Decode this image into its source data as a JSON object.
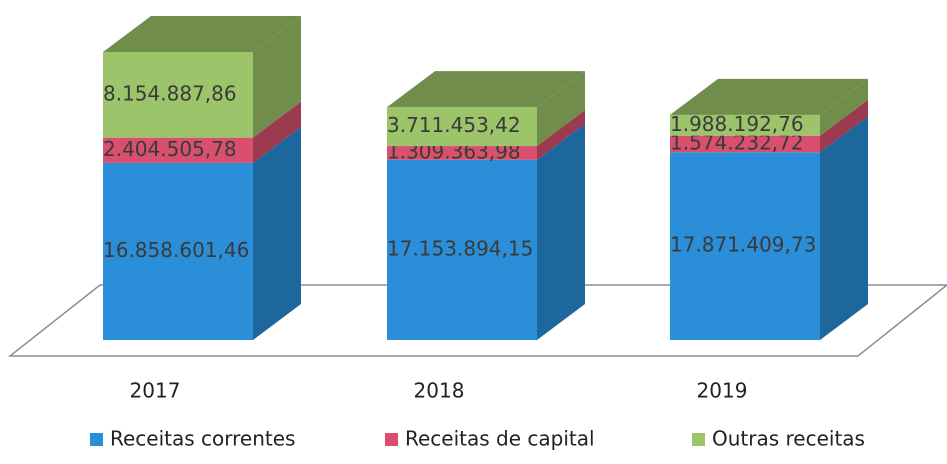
{
  "chart_data": {
    "type": "bar3d_stacked",
    "categories": [
      "2017",
      "2018",
      "2019"
    ],
    "series": [
      {
        "name": "Receitas correntes",
        "color": "#2a8fd8",
        "values": [
          16858601.46,
          17153894.15,
          17871409.73
        ],
        "value_labels": [
          "16.858.601,46",
          "17.153.894,15",
          "17.871.409,73"
        ]
      },
      {
        "name": "Receitas de capital",
        "color": "#d9506e",
        "values": [
          2404505.78,
          1309363.98,
          1574232.72
        ],
        "value_labels": [
          "2.404.505,78",
          "1.309.363,98",
          "1.574.232,72"
        ]
      },
      {
        "name": "Outras receitas",
        "color": "#9cc46a",
        "values": [
          8154887.86,
          3711453.42,
          1988192.76
        ],
        "value_labels": [
          "8.154.887,86",
          "3.711.453,42",
          "1.988.192,76"
        ]
      }
    ],
    "legend": "bottom"
  }
}
